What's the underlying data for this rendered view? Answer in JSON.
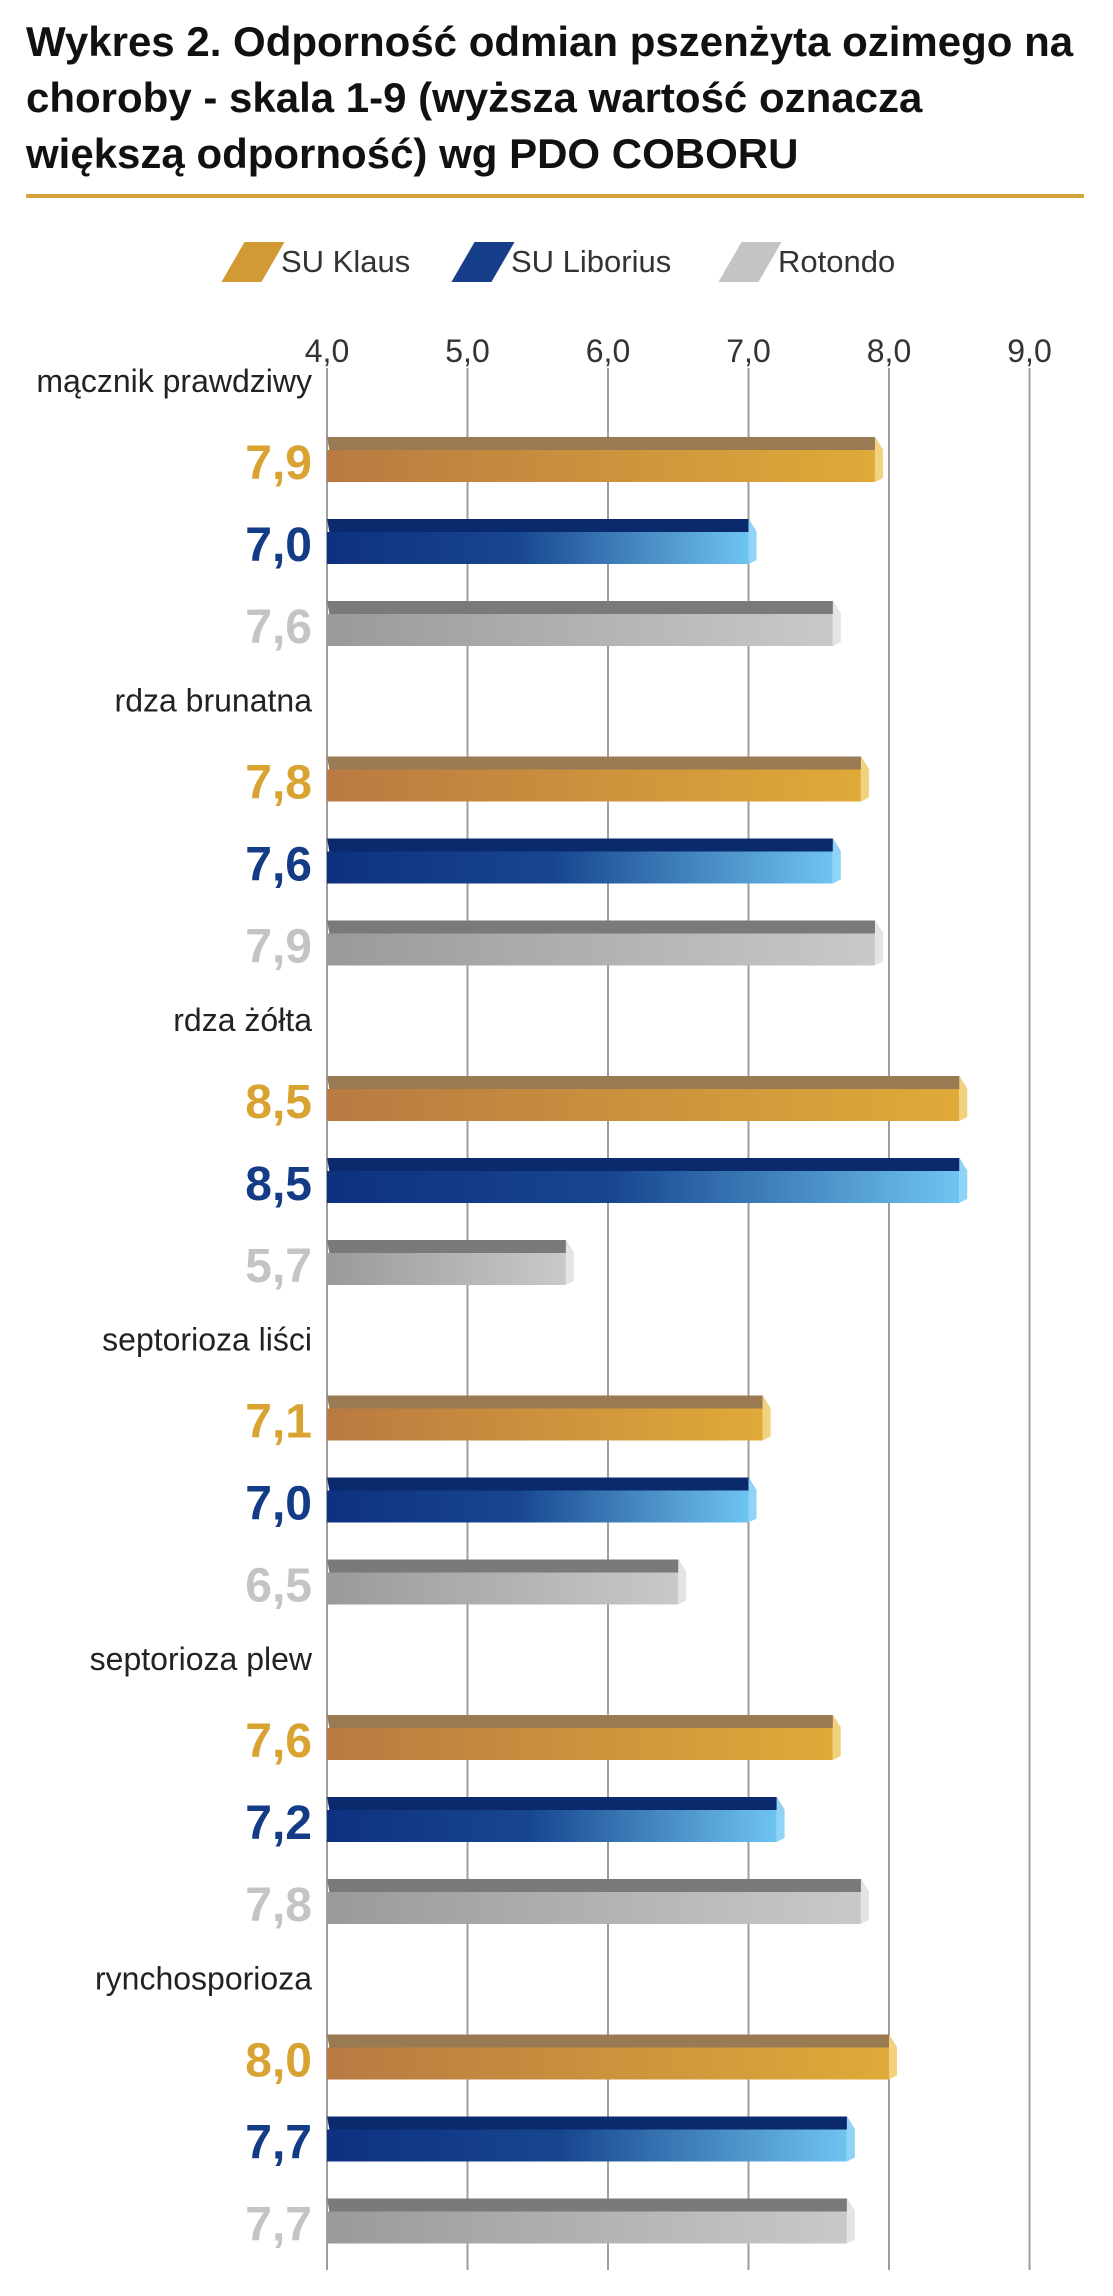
{
  "title": "Wykres 2. Odporność odmian pszenżyta ozimego na choroby - skala 1-9 (wyższa wartość oznacza większą odporność) wg PDO COBORU",
  "colors": {
    "accent_rule": "#d4a43a",
    "SU Klaus": "#d19a35",
    "SU Liborius": "#163e8a",
    "Rotondo": "#b5b5b5"
  },
  "chart_data": {
    "type": "bar",
    "orientation": "horizontal",
    "title": "Wykres 2. Odporność odmian pszenżyta ozimego na choroby - skala 1-9 (wyższa wartość oznacza większą odporność) wg PDO COBORU",
    "xlabel": "",
    "ylabel": "",
    "xlim": [
      4.0,
      9.0
    ],
    "ticks": [
      "4,0",
      "5,0",
      "6,0",
      "7,0",
      "8,0",
      "9,0"
    ],
    "tick_values": [
      4,
      5,
      6,
      7,
      8,
      9
    ],
    "grid": true,
    "legend_position": "top",
    "categories": [
      "mącznik prawdziwy",
      "rdza brunatna",
      "rdza żółta",
      "septorioza liści",
      "septorioza plew",
      "rynchosporioza"
    ],
    "series": [
      {
        "name": "SU Klaus",
        "color": "#d19a35",
        "values": [
          7.9,
          7.8,
          8.5,
          7.1,
          7.6,
          8.0
        ],
        "labels": [
          "7,9",
          "7,8",
          "8,5",
          "7,1",
          "7,6",
          "8,0"
        ]
      },
      {
        "name": "SU Liborius",
        "color": "#163e8a",
        "values": [
          7.0,
          7.6,
          8.5,
          7.0,
          7.2,
          7.7
        ],
        "labels": [
          "7,0",
          "7,6",
          "8,5",
          "7,0",
          "7,2",
          "7,7"
        ]
      },
      {
        "name": "Rotondo",
        "color": "#b5b5b5",
        "values": [
          7.6,
          7.9,
          5.7,
          6.5,
          7.8,
          7.7
        ],
        "labels": [
          "7,6",
          "7,9",
          "5,7",
          "6,5",
          "7,8",
          "7,7"
        ]
      }
    ]
  }
}
